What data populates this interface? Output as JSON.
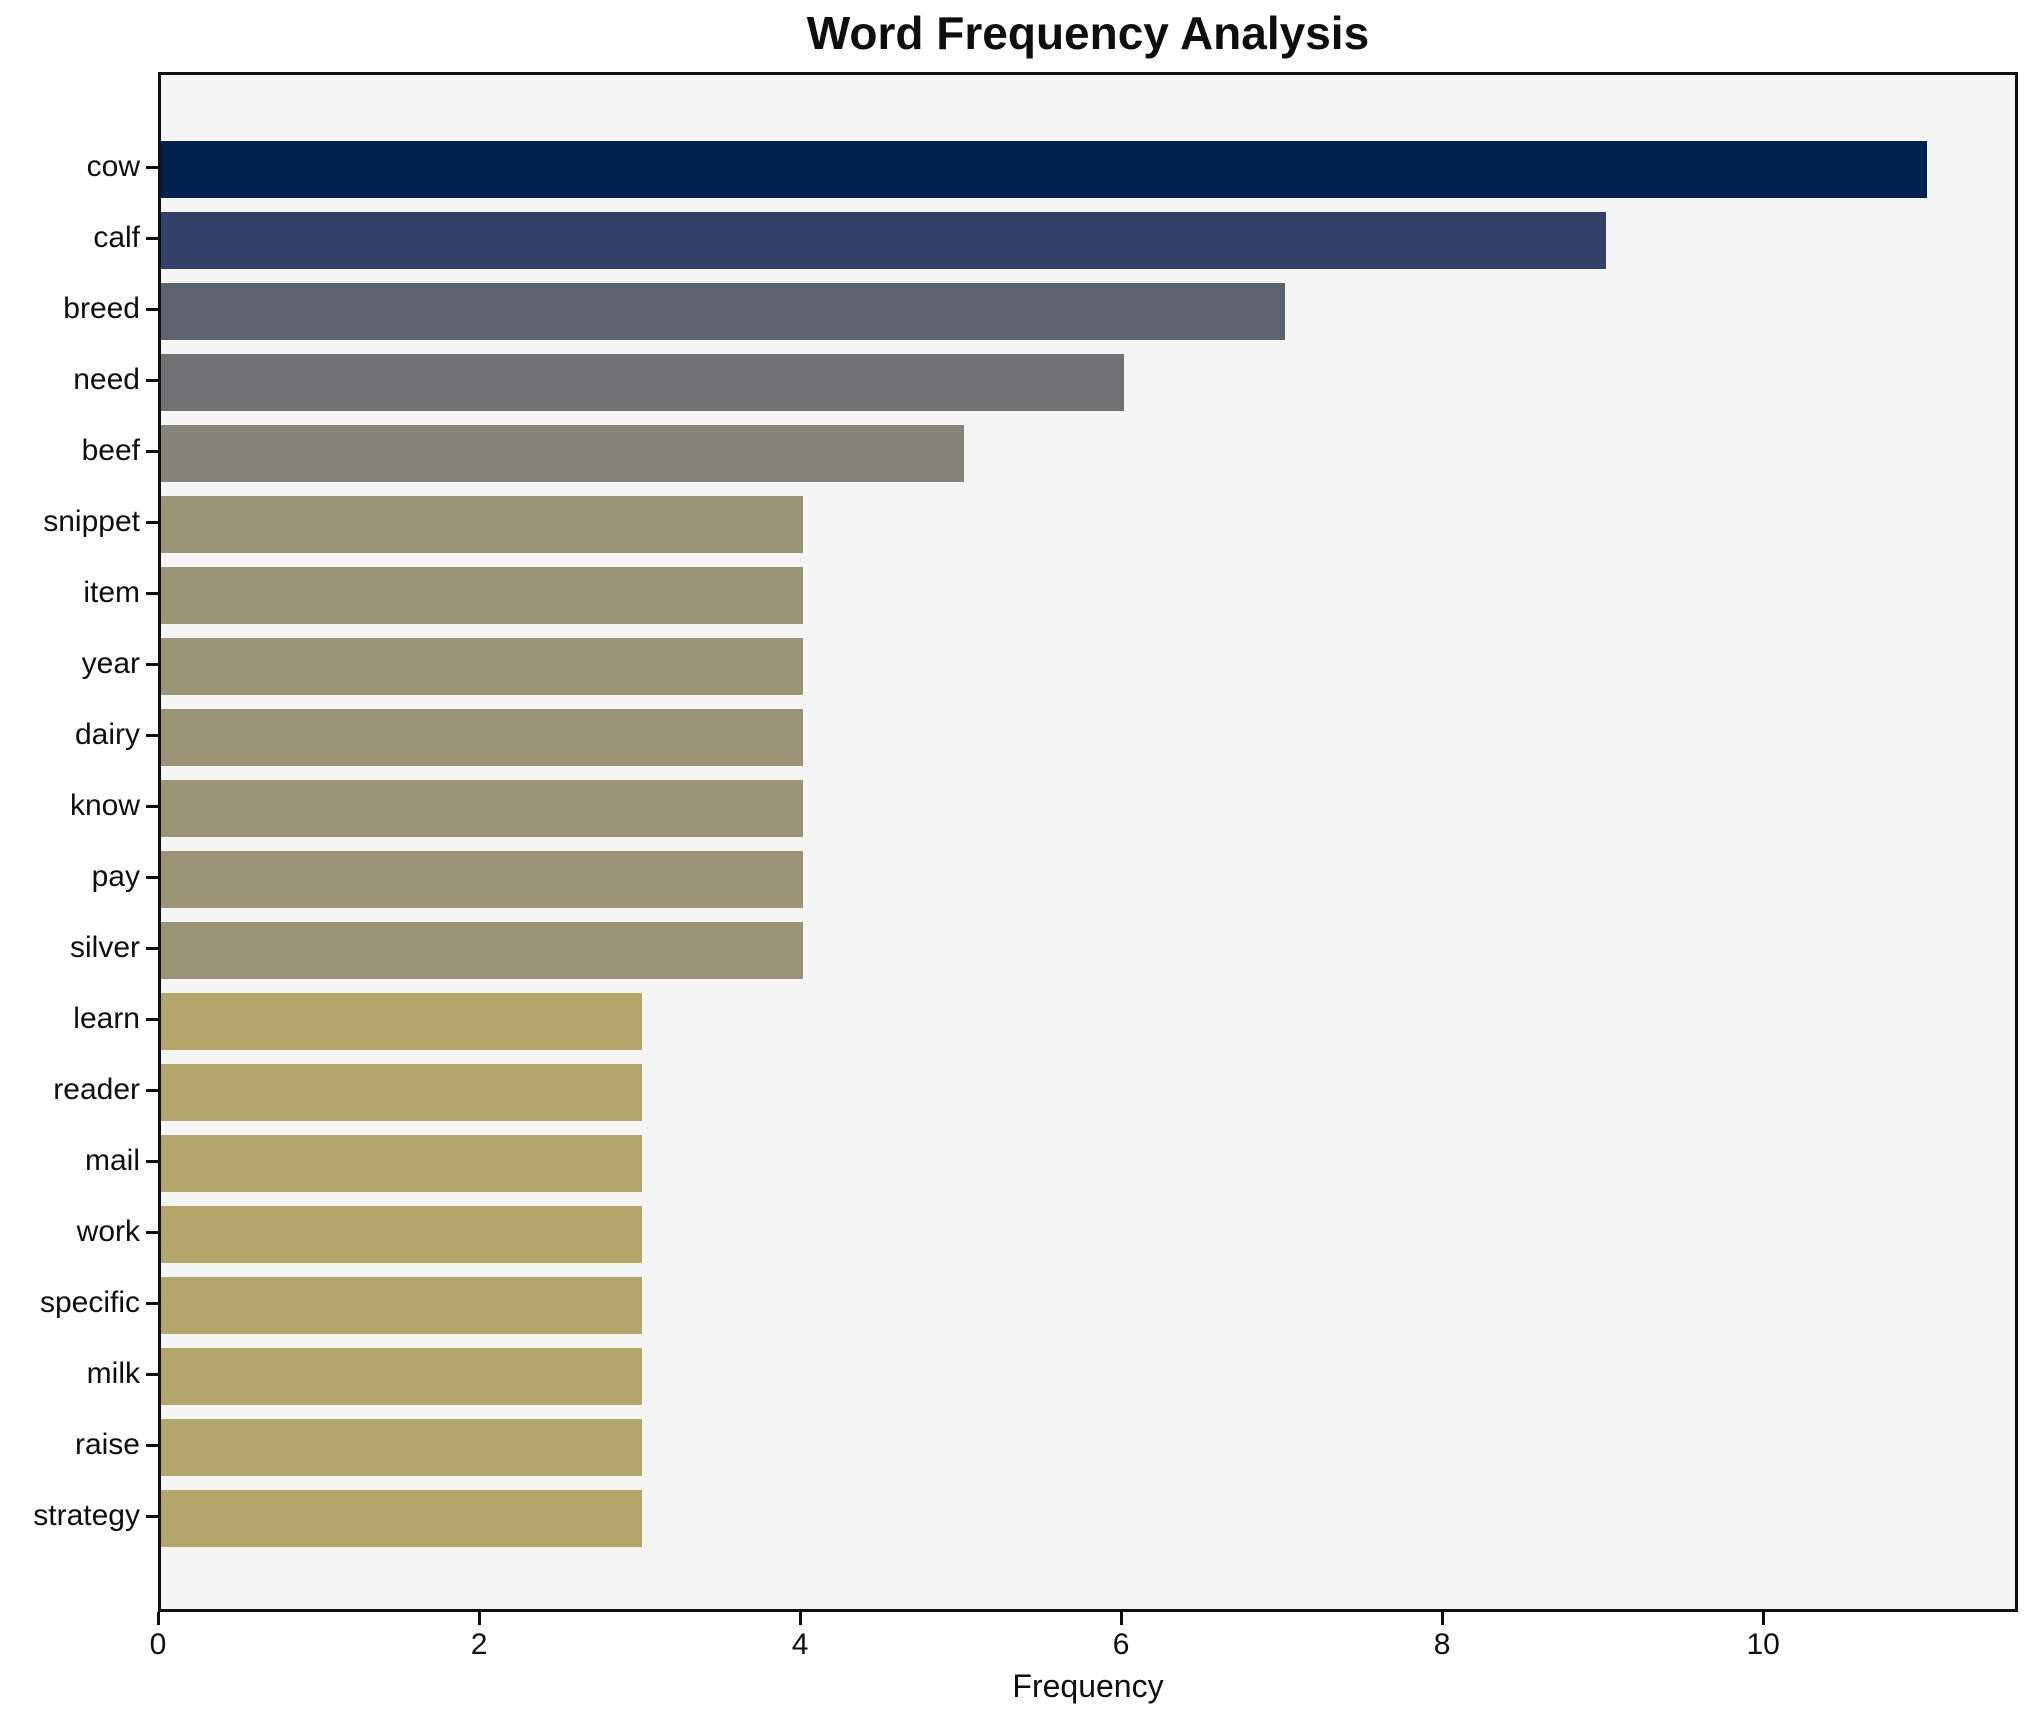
{
  "chart_data": {
    "type": "bar",
    "orientation": "horizontal",
    "title": "Word Frequency Analysis",
    "xlabel": "Frequency",
    "ylabel": "",
    "categories": [
      "cow",
      "calf",
      "breed",
      "need",
      "beef",
      "snippet",
      "item",
      "year",
      "dairy",
      "know",
      "pay",
      "silver",
      "learn",
      "reader",
      "mail",
      "work",
      "specific",
      "milk",
      "raise",
      "strategy"
    ],
    "values": [
      11,
      9,
      7,
      6,
      5,
      4,
      4,
      4,
      4,
      4,
      4,
      4,
      3,
      3,
      3,
      3,
      3,
      3,
      3,
      3
    ],
    "bar_colors": [
      "#02214f",
      "#334168",
      "#5e626f",
      "#717173",
      "#85837a",
      "#9b9375",
      "#9b9375",
      "#9b9375",
      "#9b9375",
      "#9b9375",
      "#9b9375",
      "#9b9375",
      "#b4a56a",
      "#b4a56a",
      "#b4a56a",
      "#b4a56a",
      "#b4a56a",
      "#b4a56a",
      "#b4a56a",
      "#b4a56a"
    ],
    "xticks": [
      0,
      2,
      4,
      6,
      8,
      10
    ],
    "xlim": [
      0,
      11.55
    ],
    "grid": false,
    "legend": "none",
    "colors": {
      "plot_background": "#f5f5f6",
      "figure_background": "#ffffff",
      "spine": "#0e0e0e",
      "text": "#0e0e0e"
    }
  }
}
